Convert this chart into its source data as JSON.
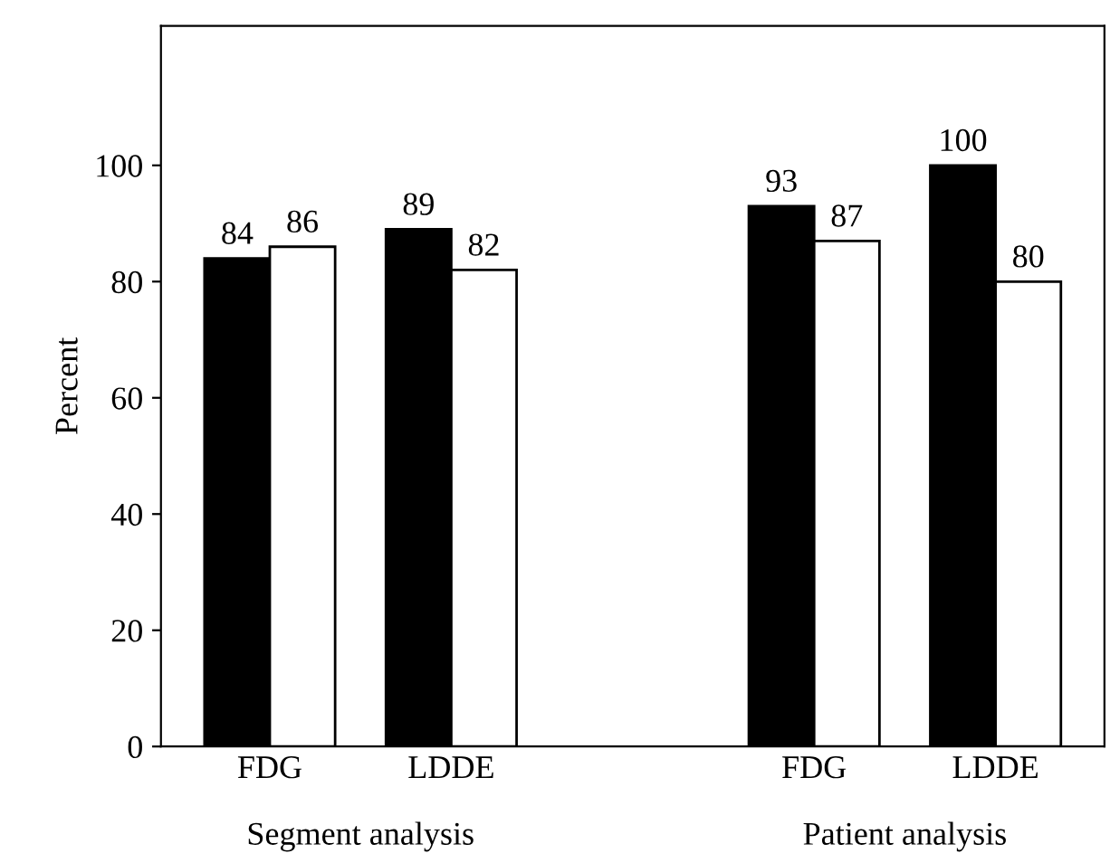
{
  "chart_data": {
    "type": "bar",
    "ylabel": "Percent",
    "categories": [
      "FDG",
      "LDDE",
      null,
      "FDG",
      "LDDE"
    ],
    "series": [
      {
        "color": "#000000",
        "values": [
          84,
          89,
          null,
          93,
          100
        ]
      },
      {
        "color": "#ffffff",
        "values": [
          86,
          82,
          null,
          87,
          80
        ]
      }
    ],
    "ylim": [
      0,
      124
    ],
    "yticks": [
      0,
      20,
      40,
      60,
      80,
      100
    ],
    "annotations": [
      "Segment analysis",
      "Patient analysis"
    ],
    "data_labels": true,
    "grid": false,
    "legend": false
  }
}
